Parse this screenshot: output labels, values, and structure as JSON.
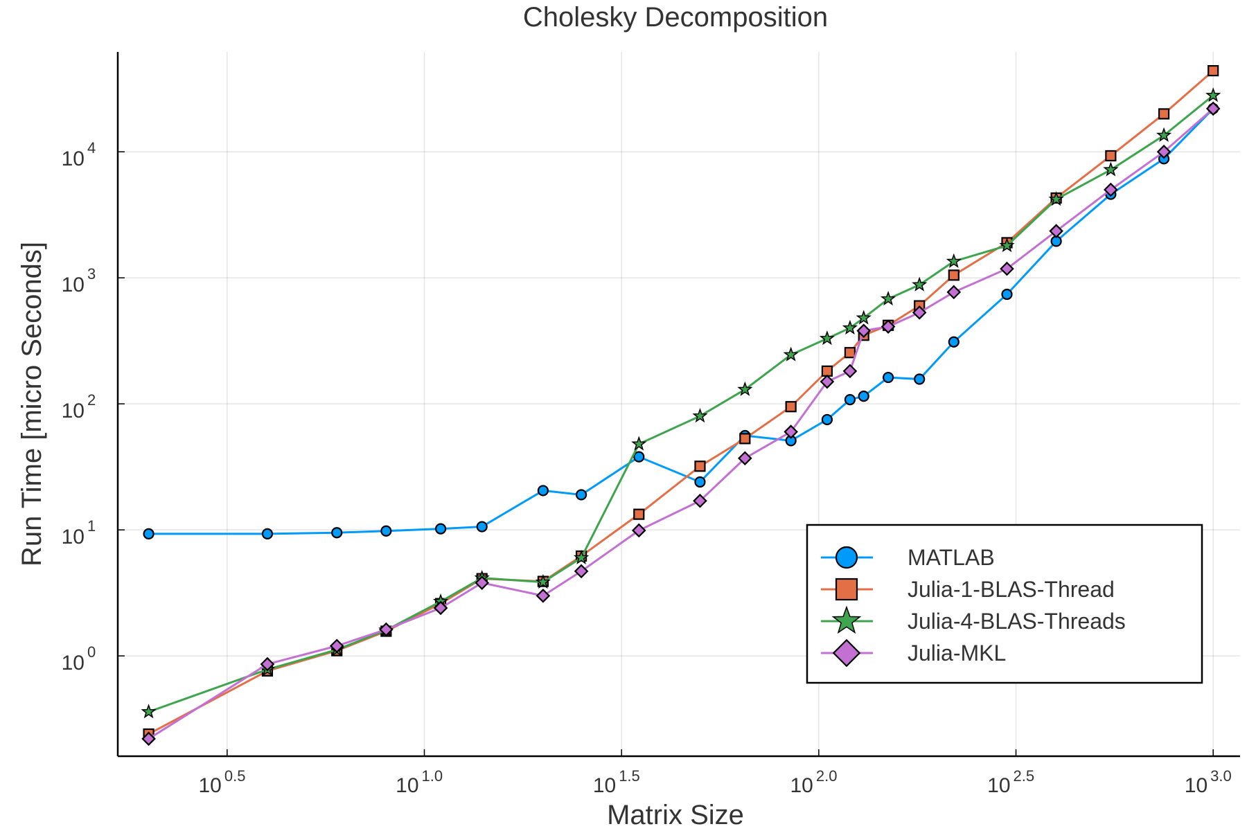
{
  "chart_data": {
    "type": "line",
    "title": "Cholesky Decomposition",
    "xlabel": "Matrix Size",
    "ylabel": "Run Time  [micro Seconds]",
    "x_scale": "log10",
    "y_scale": "log10",
    "xlim": [
      1.67,
      1170
    ],
    "ylim": [
      0.16,
      62000
    ],
    "grid": true,
    "legend_position": "right",
    "x_ticks": [
      {
        "value": 3.1623,
        "base": "10",
        "exp": "0.5"
      },
      {
        "value": 10,
        "base": "10",
        "exp": "1.0"
      },
      {
        "value": 31.623,
        "base": "10",
        "exp": "1.5"
      },
      {
        "value": 100,
        "base": "10",
        "exp": "2.0"
      },
      {
        "value": 316.23,
        "base": "10",
        "exp": "2.5"
      },
      {
        "value": 1000,
        "base": "10",
        "exp": "3.0"
      }
    ],
    "y_ticks": [
      {
        "value": 1,
        "base": "10",
        "exp": "0"
      },
      {
        "value": 10,
        "base": "10",
        "exp": "1"
      },
      {
        "value": 100,
        "base": "10",
        "exp": "2"
      },
      {
        "value": 1000,
        "base": "10",
        "exp": "3"
      },
      {
        "value": 10000,
        "base": "10",
        "exp": "4"
      }
    ],
    "x": [
      2,
      4,
      6,
      8,
      11,
      14,
      20,
      25,
      35,
      50,
      65,
      85,
      105,
      120,
      130,
      150,
      180,
      220,
      300,
      400,
      550,
      750,
      1000
    ],
    "series": [
      {
        "name": "MATLAB",
        "color": "#009AFA",
        "marker": "circle",
        "values": [
          9.3,
          9.3,
          9.5,
          9.8,
          10.2,
          10.6,
          20.5,
          19,
          38,
          24,
          56,
          51,
          75,
          108,
          115,
          162,
          157,
          310,
          740,
          1950,
          4600,
          8800,
          22000
        ]
      },
      {
        "name": "Julia-1-BLAS-Thread",
        "color": "#E36F47",
        "marker": "square",
        "values": [
          0.24,
          0.76,
          1.1,
          1.57,
          2.6,
          4.1,
          3.9,
          6.2,
          13.3,
          32,
          53,
          95,
          182,
          255,
          350,
          420,
          600,
          1050,
          1900,
          4300,
          9300,
          20000,
          44000
        ]
      },
      {
        "name": "Julia-4-BLAS-Threads",
        "color": "#3EA44E",
        "marker": "star",
        "values": [
          0.36,
          0.78,
          1.12,
          1.6,
          2.7,
          4.15,
          3.85,
          6.0,
          48,
          80,
          130,
          245,
          330,
          400,
          480,
          680,
          880,
          1350,
          1800,
          4200,
          7200,
          13500,
          28000
        ]
      },
      {
        "name": "Julia-MKL",
        "color": "#C271D2",
        "marker": "diamond",
        "values": [
          0.22,
          0.86,
          1.2,
          1.62,
          2.4,
          3.8,
          3.0,
          4.7,
          9.9,
          17,
          37,
          60,
          150,
          182,
          380,
          410,
          530,
          770,
          1180,
          2350,
          5000,
          10000,
          22000
        ]
      }
    ]
  }
}
